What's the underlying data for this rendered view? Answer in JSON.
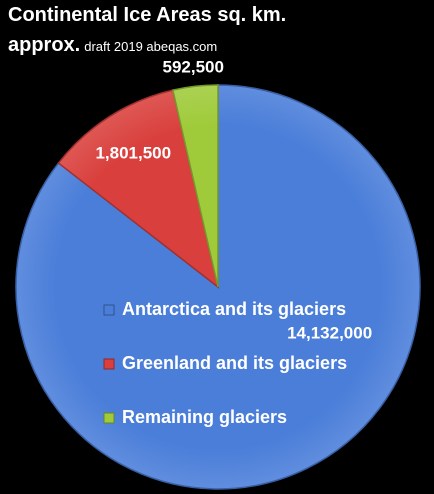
{
  "header": {
    "title_line1": "Continental Ice Areas sq. km.",
    "title_line2": "approx.",
    "subtitle": "draft 2019 abeqas.com"
  },
  "chart_data": {
    "type": "pie",
    "title": "Continental Ice Areas sq. km. approx.",
    "legend_position": "inside-center",
    "slices": [
      {
        "name": "Antarctica and its glaciers",
        "value": 14132000,
        "label": "14,132,000",
        "color": "#4a7ed9"
      },
      {
        "name": "Greenland and its glaciers",
        "value": 1801500,
        "label": "1,801,500",
        "color": "#d9403d"
      },
      {
        "name": "Remaining glaciers",
        "value": 592500,
        "label": "592,500",
        "color": "#9fcb3a"
      }
    ]
  }
}
